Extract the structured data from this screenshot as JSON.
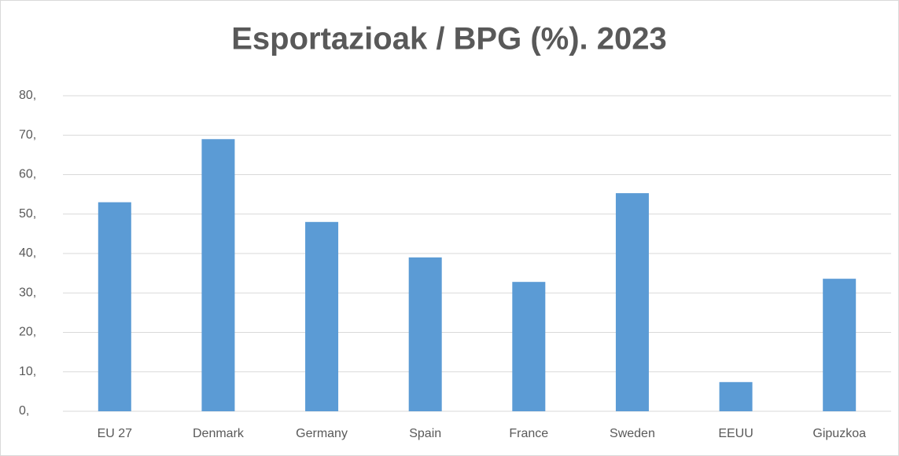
{
  "chart_data": {
    "type": "bar",
    "title": "Esportazioak / BPG (%). 2023",
    "categories": [
      "EU 27",
      "Denmark",
      "Germany",
      "Spain",
      "France",
      "Sweden",
      "EEUU",
      "Gipuzkoa"
    ],
    "values": [
      53,
      69,
      48,
      39,
      32.8,
      55.3,
      7.4,
      33.6
    ],
    "color": "#5b9bd5",
    "ylim": [
      0,
      80
    ],
    "yticks": [
      {
        "value": 0,
        "label": "0,"
      },
      {
        "value": 10,
        "label": "10,"
      },
      {
        "value": 20,
        "label": "20,"
      },
      {
        "value": 30,
        "label": "30,"
      },
      {
        "value": 40,
        "label": "40,"
      },
      {
        "value": 50,
        "label": "50,"
      },
      {
        "value": 60,
        "label": "60,"
      },
      {
        "value": 70,
        "label": "70,"
      },
      {
        "value": 80,
        "label": "80,"
      }
    ],
    "grid": true
  }
}
